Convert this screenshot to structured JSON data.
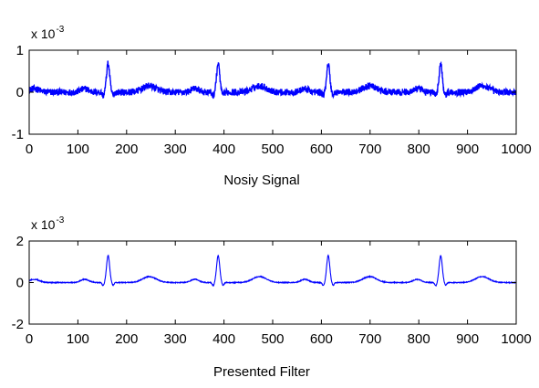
{
  "chart_data": [
    {
      "type": "line",
      "xlabel": "Nosiy Signal",
      "ylabel": "",
      "xlim": [
        0,
        1000
      ],
      "ylim": [
        -1,
        1
      ],
      "xticks": [
        "0",
        "100",
        "200",
        "300",
        "400",
        "500",
        "600",
        "700",
        "800",
        "900",
        "1000"
      ],
      "yticks": [
        "-1",
        "0",
        "1"
      ],
      "exponent": {
        "base": "x 10",
        "power": "-3"
      },
      "peaks_x": [
        162,
        388,
        614,
        845
      ],
      "peak_height": 0.68,
      "baseline": 0,
      "noise_amplitude": 0.08,
      "line_color": "#0000ff",
      "grid": false
    },
    {
      "type": "line",
      "xlabel": "Presented Filter",
      "ylabel": "",
      "xlim": [
        0,
        1000
      ],
      "ylim": [
        -2,
        2
      ],
      "xticks": [
        "0",
        "100",
        "200",
        "300",
        "400",
        "500",
        "600",
        "700",
        "800",
        "900",
        "1000"
      ],
      "yticks": [
        "-2",
        "0",
        "2"
      ],
      "exponent": {
        "base": "x 10",
        "power": "-3"
      },
      "peaks_x": [
        162,
        388,
        614,
        845
      ],
      "peak_height": 1.3,
      "baseline": 0,
      "noise_amplitude": 0.02,
      "line_color": "#0000ff",
      "grid": false
    }
  ]
}
